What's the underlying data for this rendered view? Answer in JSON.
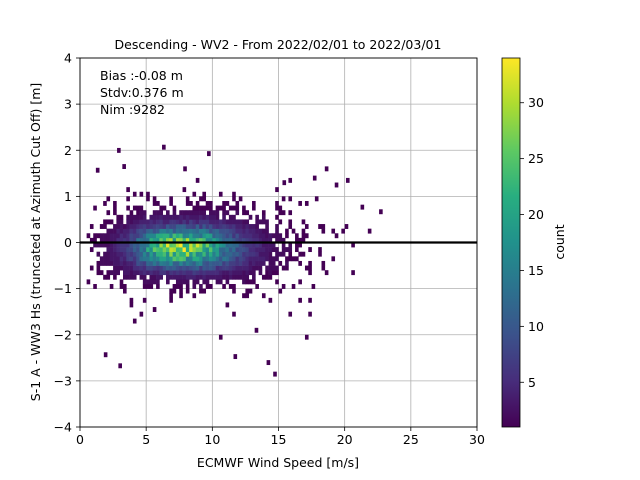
{
  "chart_data": {
    "type": "heatmap",
    "title": "Descending - WV2 - From 2022/02/01 to 2022/03/01",
    "xlabel": "ECMWF Wind Speed [m/s]",
    "ylabel": "S-1 A - WW3 Hs (truncated at Azimuth Cut Off) [m]",
    "xlim": [
      0,
      30
    ],
    "ylim": [
      -4,
      4
    ],
    "x_ticks": [
      0,
      5,
      10,
      15,
      20,
      25,
      30
    ],
    "y_ticks": [
      -4,
      -3,
      -2,
      -1,
      0,
      1,
      2,
      3,
      4
    ],
    "grid": true,
    "stats": [
      "Bias :-0.08 m",
      "Stdv:0.376 m",
      "Nim :9282"
    ],
    "reference_line_y": 0,
    "bin_size": {
      "x": 0.25,
      "y": 0.1
    },
    "density": {
      "center_x": 7.2,
      "center_y": -0.15,
      "peak_count": 34,
      "x_extent": [
        0.5,
        22.5
      ],
      "y_extent": [
        -2.9,
        2.0
      ],
      "sigma_x": 3.6,
      "sigma_y": 0.42
    },
    "outliers": [
      {
        "x": 2.8,
        "y": 1.95
      },
      {
        "x": 6.2,
        "y": 2.02
      },
      {
        "x": 9.6,
        "y": 1.88
      },
      {
        "x": 1.2,
        "y": 1.52
      },
      {
        "x": 1.8,
        "y": -2.48
      },
      {
        "x": 2.9,
        "y": -2.72
      },
      {
        "x": 11.6,
        "y": -2.52
      },
      {
        "x": 14.6,
        "y": -2.9
      },
      {
        "x": 14.1,
        "y": -2.65
      },
      {
        "x": 17.0,
        "y": -2.1
      },
      {
        "x": 10.5,
        "y": -2.1
      },
      {
        "x": 13.2,
        "y": -1.95
      },
      {
        "x": 20.1,
        "y": 1.3
      },
      {
        "x": 22.6,
        "y": 0.62
      },
      {
        "x": 21.2,
        "y": 0.72
      },
      {
        "x": 18.5,
        "y": 1.55
      },
      {
        "x": 17.6,
        "y": 1.35
      },
      {
        "x": 15.3,
        "y": 1.25
      },
      {
        "x": 4.0,
        "y": -1.75
      },
      {
        "x": 3.2,
        "y": 1.6
      },
      {
        "x": 7.8,
        "y": 1.55
      }
    ],
    "colorbar": {
      "label": "count",
      "min": 1,
      "max": 34,
      "ticks": [
        5,
        10,
        15,
        20,
        25,
        30
      ],
      "colormap": "viridis"
    }
  }
}
